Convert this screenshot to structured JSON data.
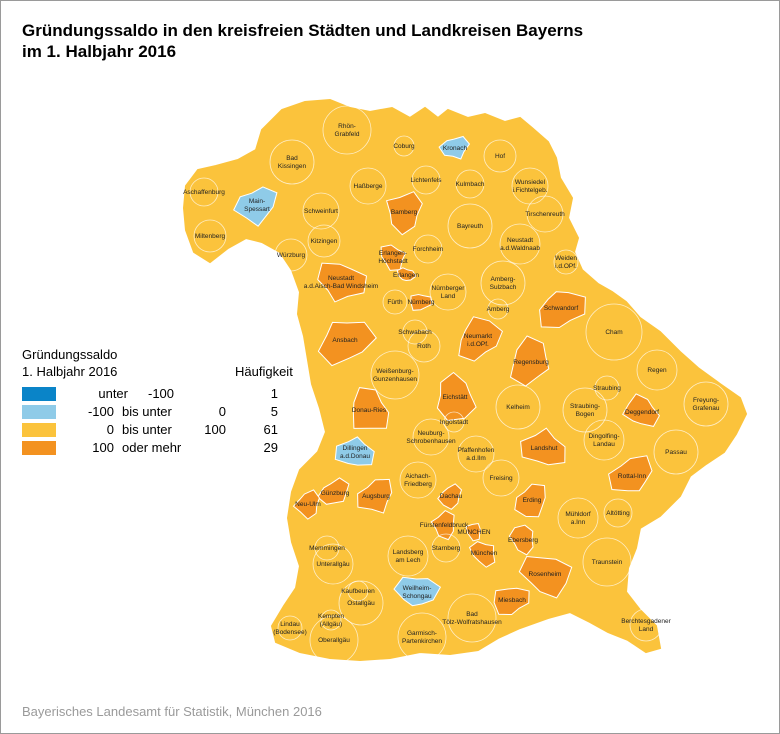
{
  "title_line1": "Gründungssaldo in den kreisfreien Städten und Landkreisen Bayerns",
  "title_line2": "im 1. Halbjahr 2016",
  "legend": {
    "title_line1": "Gründungssaldo",
    "title_line2": "1. Halbjahr 2016",
    "count_header": "Häufigkeit",
    "rows": [
      {
        "lo": "unter",
        "mid": "",
        "hi": "-100",
        "count": "1",
        "color": "#0a84c8"
      },
      {
        "lo": "-100",
        "mid": "bis unter",
        "hi": "0",
        "count": "5",
        "color": "#8fcbe8"
      },
      {
        "lo": "0",
        "mid": "bis unter",
        "hi": "100",
        "count": "61",
        "color": "#fbc33c"
      },
      {
        "lo": "100",
        "mid": "oder mehr",
        "hi": "",
        "count": "29",
        "color": "#f39220"
      }
    ]
  },
  "colors": {
    "class1": "#0a84c8",
    "class2": "#8fcbe8",
    "class3": "#fbc33c",
    "class4": "#f39220",
    "border": "#ffffff",
    "frame": "#9a9a9a"
  },
  "regions": [
    {
      "name": "Rhön-Grabfeld",
      "cls": 3
    },
    {
      "name": "Bad Kissingen",
      "cls": 3
    },
    {
      "name": "Coburg",
      "cls": 3
    },
    {
      "name": "Kronach",
      "cls": 2
    },
    {
      "name": "Hof",
      "cls": 3
    },
    {
      "name": "Aschaffenburg",
      "cls": 3
    },
    {
      "name": "Main-Spessart",
      "cls": 2
    },
    {
      "name": "Haßberge",
      "cls": 3
    },
    {
      "name": "Lichtenfels",
      "cls": 3
    },
    {
      "name": "Kulmbach",
      "cls": 3
    },
    {
      "name": "Wunsiedel i.Fichtelgeb.",
      "cls": 3
    },
    {
      "name": "Schweinfurt",
      "cls": 3
    },
    {
      "name": "Bamberg",
      "cls": 4
    },
    {
      "name": "Bayreuth",
      "cls": 3
    },
    {
      "name": "Tirschenreuth",
      "cls": 3
    },
    {
      "name": "Miltenberg",
      "cls": 3
    },
    {
      "name": "Kitzingen",
      "cls": 3
    },
    {
      "name": "Würzburg",
      "cls": 3
    },
    {
      "name": "Erlangen-Höchstadt",
      "cls": 4
    },
    {
      "name": "Forchheim",
      "cls": 3
    },
    {
      "name": "Neustadt a.d.Waldnaab",
      "cls": 3
    },
    {
      "name": "Weiden i.d.OPf.",
      "cls": 3
    },
    {
      "name": "Neustadt a.d.Aisch-Bad Windsheim",
      "cls": 4
    },
    {
      "name": "Erlangen",
      "cls": 4
    },
    {
      "name": "Amberg-Sulzbach",
      "cls": 3
    },
    {
      "name": "Nürnberger Land",
      "cls": 3
    },
    {
      "name": "Fürth",
      "cls": 3
    },
    {
      "name": "Nürnberg",
      "cls": 4
    },
    {
      "name": "Amberg",
      "cls": 3
    },
    {
      "name": "Schwandorf",
      "cls": 4
    },
    {
      "name": "Ansbach",
      "cls": 4
    },
    {
      "name": "Schwabach",
      "cls": 3
    },
    {
      "name": "Roth",
      "cls": 3
    },
    {
      "name": "Neumarkt i.d.OPf.",
      "cls": 4
    },
    {
      "name": "Cham",
      "cls": 3
    },
    {
      "name": "Regensburg",
      "cls": 4
    },
    {
      "name": "Regen",
      "cls": 3
    },
    {
      "name": "Weißenburg-Gunzenhausen",
      "cls": 3
    },
    {
      "name": "Straubing",
      "cls": 3
    },
    {
      "name": "Eichstätt",
      "cls": 4
    },
    {
      "name": "Donau-Ries",
      "cls": 4
    },
    {
      "name": "Kelheim",
      "cls": 3
    },
    {
      "name": "Straubing-Bogen",
      "cls": 3
    },
    {
      "name": "Freyung-Grafenau",
      "cls": 3
    },
    {
      "name": "Deggendorf",
      "cls": 4
    },
    {
      "name": "Ingolstadt",
      "cls": 3
    },
    {
      "name": "Neuburg-Schrobenhausen",
      "cls": 3
    },
    {
      "name": "Landshut",
      "cls": 4
    },
    {
      "name": "Dingolfing-Landau",
      "cls": 3
    },
    {
      "name": "Dillingen a.d.Donau",
      "cls": 2
    },
    {
      "name": "Pfaffenhofen a.d.Ilm",
      "cls": 3
    },
    {
      "name": "Passau",
      "cls": 3
    },
    {
      "name": "Aichach-Friedberg",
      "cls": 3
    },
    {
      "name": "Freising",
      "cls": 3
    },
    {
      "name": "Rottal-Inn",
      "cls": 4
    },
    {
      "name": "Günzburg",
      "cls": 4
    },
    {
      "name": "Augsburg",
      "cls": 4
    },
    {
      "name": "Dachau",
      "cls": 4
    },
    {
      "name": "Erding",
      "cls": 4
    },
    {
      "name": "Neu-Ulm",
      "cls": 4
    },
    {
      "name": "Mühldorf a.Inn",
      "cls": 3
    },
    {
      "name": "Altötting",
      "cls": 3
    },
    {
      "name": "Fürstenfeldbruck",
      "cls": 4
    },
    {
      "name": "MÜNCHEN",
      "cls": 4
    },
    {
      "name": "Ebersberg",
      "cls": 4
    },
    {
      "name": "Memmingen",
      "cls": 3
    },
    {
      "name": "Landsberg am Lech",
      "cls": 3
    },
    {
      "name": "Starnberg",
      "cls": 3
    },
    {
      "name": "München",
      "cls": 4
    },
    {
      "name": "Unterallgäu",
      "cls": 3
    },
    {
      "name": "Traunstein",
      "cls": 3
    },
    {
      "name": "Rosenheim",
      "cls": 4
    },
    {
      "name": "Kaufbeuren",
      "cls": 3
    },
    {
      "name": "Weilheim-Schongau",
      "cls": 2
    },
    {
      "name": "Ostallgäu",
      "cls": 3
    },
    {
      "name": "Bad Tölz-Wolfratshausen",
      "cls": 3
    },
    {
      "name": "Miesbach",
      "cls": 4
    },
    {
      "name": "Berchtesgadener Land",
      "cls": 3
    },
    {
      "name": "Kempten (Allgäu)",
      "cls": 3
    },
    {
      "name": "Lindau (Bodensee)",
      "cls": 3
    },
    {
      "name": "Oberallgäu",
      "cls": 3
    },
    {
      "name": "Garmisch-Partenkirchen",
      "cls": 3
    }
  ],
  "source": "Bayerisches Landesamt für Statistik, München 2016"
}
